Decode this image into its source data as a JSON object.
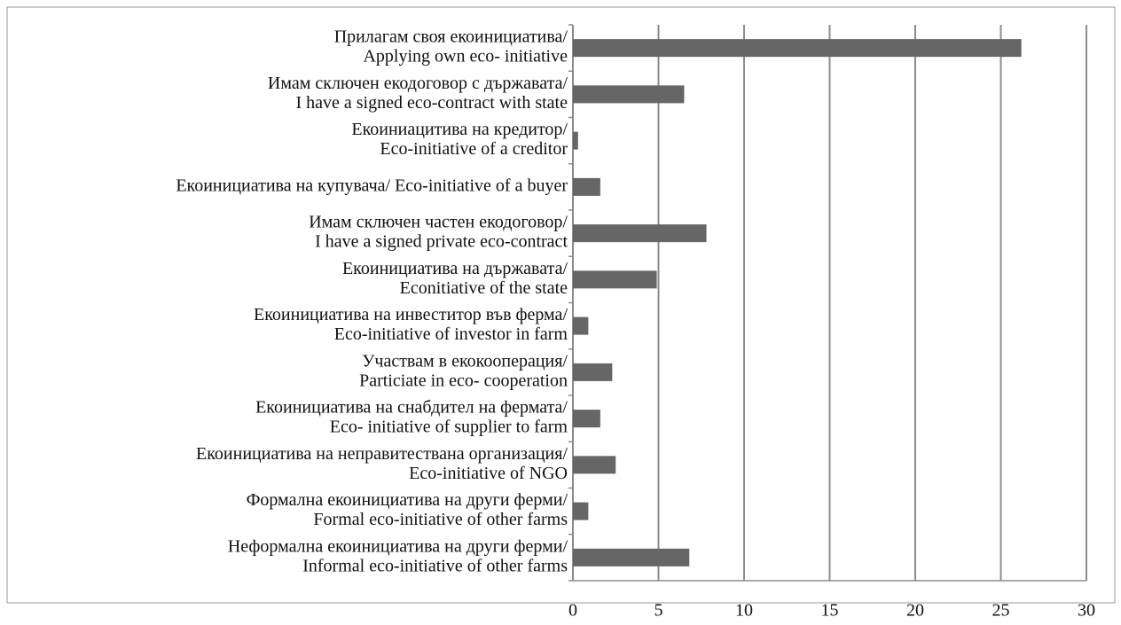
{
  "chart_data": {
    "type": "bar",
    "orientation": "horizontal",
    "categories": [
      [
        "Прилагам своя екоинициатива/",
        "Applying own eco- initiative"
      ],
      [
        "Имам сключен екодоговор с държавата/",
        "I have a signed eco-contract with state"
      ],
      [
        "Екоиниацитива на кредитор/",
        "Eco-initiative of a creditor"
      ],
      [
        "Екоинициатива на купувача/ Eco-initiative of a buyer"
      ],
      [
        "Имам сключен частен екодоговор/",
        "I have a signed private eco-contract"
      ],
      [
        "Екоинициатива на държавата/",
        "Econitiative of the  state"
      ],
      [
        "Екоинициатива на инвеститор във ферма/",
        "Eco-initiative of investor in farm"
      ],
      [
        "Участвам в екокооперация/",
        "Particiate in eco- cooperation"
      ],
      [
        "Екоинициатива на снабдител на фермата/",
        "Eco- initiative of supplier to farm"
      ],
      [
        "Екоинициатива на неправитествана организация/",
        "Eco-initiative of NGO"
      ],
      [
        "Формална екоинициатива на други ферми/",
        "Formal eco-initiative of other farms"
      ],
      [
        "Неформална екоинициатива на други ферми/",
        "Informal eco-initiative of other farms"
      ]
    ],
    "values": [
      26.2,
      6.5,
      0.3,
      1.6,
      7.8,
      4.9,
      0.9,
      2.3,
      1.6,
      2.5,
      0.9,
      6.8
    ],
    "color": "#666666",
    "xlim": [
      0,
      30
    ],
    "xticks": [
      0,
      5,
      10,
      15,
      20,
      25,
      30
    ],
    "grid": true
  }
}
